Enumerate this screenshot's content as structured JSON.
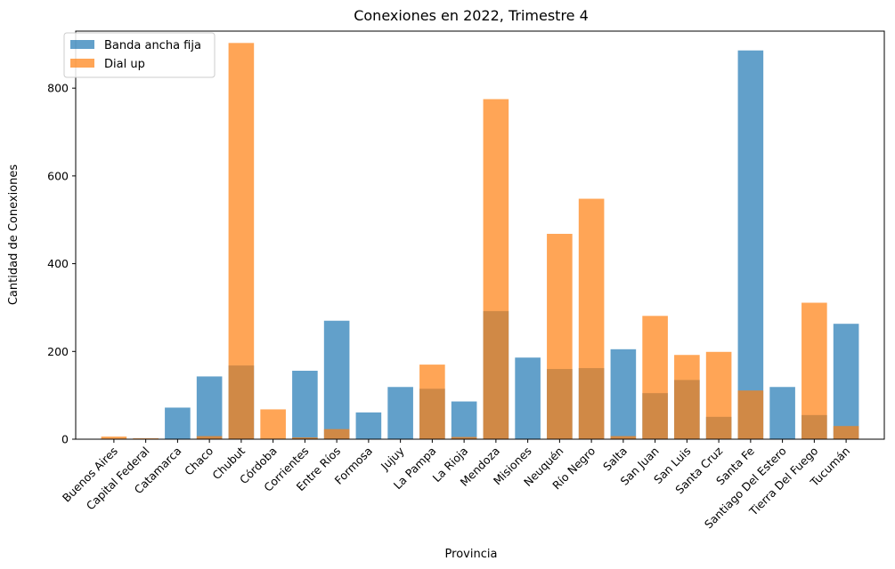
{
  "chart_data": {
    "type": "bar",
    "title": "Conexiones en 2022, Trimestre 4",
    "xlabel": "Provincia",
    "ylabel": "Cantidad de Conexiones",
    "ylim": [
      0,
      930
    ],
    "yticks": [
      0,
      200,
      400,
      600,
      800
    ],
    "legend_position": "top-left",
    "categories": [
      "Buenos Aires",
      "Capital Federal",
      "Catamarca",
      "Chaco",
      "Chubut",
      "Córdoba",
      "Corrientes",
      "Entre Ríos",
      "Formosa",
      "Jujuy",
      "La Pampa",
      "La Rioja",
      "Mendoza",
      "Misiones",
      "Neuquén",
      "Río Negro",
      "Salta",
      "San Juan",
      "San Luis",
      "Santa Cruz",
      "Santa Fe",
      "Santiago Del Estero",
      "Tierra Del Fuego",
      "Tucumán"
    ],
    "series": [
      {
        "name": "Banda ancha fija",
        "color": "#1f77b4",
        "values": [
          0,
          0,
          72,
          143,
          168,
          0,
          156,
          270,
          61,
          119,
          115,
          86,
          292,
          186,
          160,
          162,
          205,
          105,
          135,
          51,
          886,
          119,
          55,
          263
        ]
      },
      {
        "name": "Dial up",
        "color": "#ff7f0e",
        "values": [
          6,
          2,
          0,
          7,
          903,
          68,
          4,
          23,
          0,
          0,
          170,
          5,
          775,
          0,
          468,
          548,
          7,
          281,
          192,
          199,
          111,
          0,
          311,
          30
        ]
      }
    ]
  }
}
